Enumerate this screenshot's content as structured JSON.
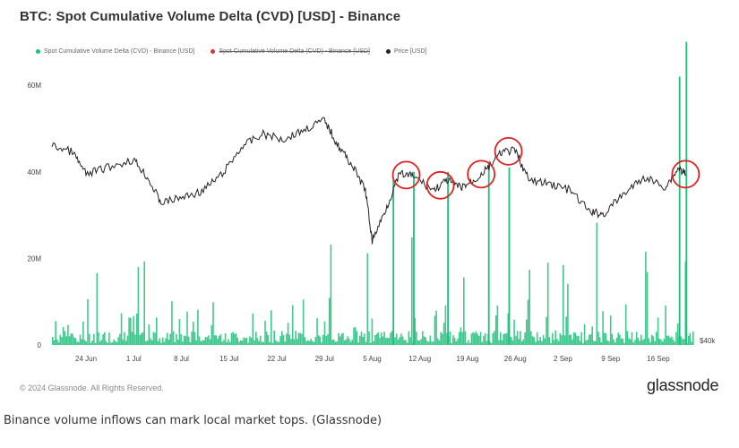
{
  "title": "BTC: Spot Cumulative Volume Delta (CVD) [USD] - Binance",
  "legend": [
    {
      "label": "Spot Cumulative Volume Delta (CVD) - Binance [USD]",
      "color": "#1fbf7a",
      "struck": false
    },
    {
      "label": "Spot Cumulative Volume Delta (CVD) - Binance [USD]",
      "color": "#e03030",
      "struck": true
    },
    {
      "label": "Price [USD]",
      "color": "#222222",
      "struck": false
    }
  ],
  "copyright": "© 2024 Glassnode. All Rights Reserved.",
  "brand": "glassnode",
  "caption": "Binance volume inflows can mark local market tops. (Glassnode)",
  "chart_data": {
    "type": "bar",
    "title": "BTC: Spot Cumulative Volume Delta (CVD) [USD] - Binance",
    "x_ticks": [
      "24 Jun",
      "1 Jul",
      "8 Jul",
      "15 Jul",
      "22 Jul",
      "29 Jul",
      "5 Aug",
      "12 Aug",
      "19 Aug",
      "26 Aug",
      "2 Sep",
      "9 Sep",
      "16 Sep"
    ],
    "y_left_ticks": [
      "0",
      "20M",
      "40M",
      "60M"
    ],
    "y_left_lim": [
      0,
      65000000
    ],
    "y_right_ticks": [
      "$40k"
    ],
    "series": [
      {
        "name": "Spot Cumulative Volume Delta (CVD) - Binance [USD]",
        "color": "#1fbf7a",
        "spikes": [
          {
            "date": "2024-08-08",
            "value": 38000000
          },
          {
            "date": "2024-08-11",
            "value": 40000000
          },
          {
            "date": "2024-08-16",
            "value": 40000000
          },
          {
            "date": "2024-08-22",
            "value": 42000000
          },
          {
            "date": "2024-08-25",
            "value": 41000000
          },
          {
            "date": "2024-09-19",
            "value": 62000000
          },
          {
            "date": "2024-09-20",
            "value": 70000000
          }
        ]
      },
      {
        "name": "Price [USD]",
        "color": "#222222",
        "points": [
          [
            "2024-06-19",
            65000
          ],
          [
            "2024-06-22",
            64000
          ],
          [
            "2024-06-24",
            60500
          ],
          [
            "2024-06-27",
            61500
          ],
          [
            "2024-07-01",
            62800
          ],
          [
            "2024-07-03",
            60000
          ],
          [
            "2024-07-05",
            56000
          ],
          [
            "2024-07-08",
            56800
          ],
          [
            "2024-07-11",
            57800
          ],
          [
            "2024-07-14",
            60500
          ],
          [
            "2024-07-17",
            65000
          ],
          [
            "2024-07-20",
            66800
          ],
          [
            "2024-07-23",
            66000
          ],
          [
            "2024-07-26",
            67500
          ],
          [
            "2024-07-29",
            69000
          ],
          [
            "2024-07-31",
            65000
          ],
          [
            "2024-08-02",
            62000
          ],
          [
            "2024-08-04",
            58000
          ],
          [
            "2024-08-05",
            50000
          ],
          [
            "2024-08-07",
            55000
          ],
          [
            "2024-08-09",
            60500
          ],
          [
            "2024-08-11",
            60200
          ],
          [
            "2024-08-14",
            58000
          ],
          [
            "2024-08-16",
            59500
          ],
          [
            "2024-08-18",
            58400
          ],
          [
            "2024-08-20",
            59500
          ],
          [
            "2024-08-22",
            61500
          ],
          [
            "2024-08-24",
            64000
          ],
          [
            "2024-08-26",
            64200
          ],
          [
            "2024-08-28",
            59500
          ],
          [
            "2024-08-31",
            59000
          ],
          [
            "2024-09-03",
            58000
          ],
          [
            "2024-09-06",
            54500
          ],
          [
            "2024-09-08",
            54200
          ],
          [
            "2024-09-11",
            57500
          ],
          [
            "2024-09-14",
            60000
          ],
          [
            "2024-09-17",
            58500
          ],
          [
            "2024-09-19",
            61500
          ],
          [
            "2024-09-20",
            60500
          ]
        ]
      }
    ],
    "annotations": [
      {
        "type": "circle",
        "date": "2024-08-10",
        "color": "#dd2222"
      },
      {
        "type": "circle",
        "date": "2024-08-15",
        "color": "#dd2222"
      },
      {
        "type": "circle",
        "date": "2024-08-21",
        "color": "#dd2222"
      },
      {
        "type": "circle",
        "date": "2024-08-25",
        "color": "#dd2222"
      },
      {
        "type": "circle",
        "date": "2024-09-20",
        "color": "#dd2222"
      }
    ]
  }
}
